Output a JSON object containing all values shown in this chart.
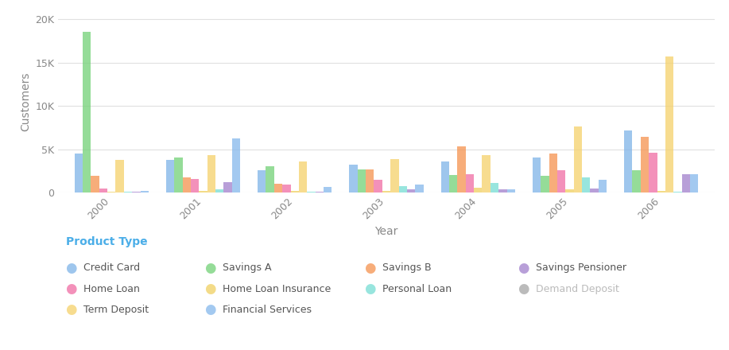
{
  "years": [
    2000,
    2001,
    2002,
    2003,
    2004,
    2005,
    2006
  ],
  "products": [
    "Credit Card",
    "Savings A",
    "Savings B",
    "Home Loan",
    "Home Loan Insurance",
    "Term Deposit",
    "Personal Loan",
    "Savings Pensioner",
    "Financial Services",
    "Demand Deposit"
  ],
  "colors": {
    "Credit Card": "#7EB3E8",
    "Home Loan": "#F06CA3",
    "Term Deposit": "#F5D16A",
    "Savings A": "#72D176",
    "Home Loan Insurance": "#F0D060",
    "Financial Services": "#85B8EC",
    "Savings B": "#F5924E",
    "Personal Loan": "#76DDD4",
    "Savings Pensioner": "#A07FCC",
    "Demand Deposit": "#CCCCCC"
  },
  "data": {
    "Credit Card": [
      4500,
      3800,
      2600,
      3200,
      3600,
      4000,
      7200
    ],
    "Home Loan": [
      500,
      1600,
      900,
      1500,
      2100,
      2600,
      4600
    ],
    "Term Deposit": [
      3800,
      4300,
      3600,
      3900,
      4300,
      7600,
      15700
    ],
    "Savings A": [
      18500,
      4000,
      3000,
      2700,
      2000,
      1900,
      2600
    ],
    "Home Loan Insurance": [
      100,
      200,
      200,
      200,
      550,
      350,
      200
    ],
    "Financial Services": [
      150,
      6200,
      600,
      900,
      400,
      1500,
      2100
    ],
    "Savings B": [
      1900,
      1700,
      1000,
      2700,
      5300,
      4500,
      6400
    ],
    "Personal Loan": [
      100,
      350,
      100,
      700,
      1100,
      1700,
      100
    ],
    "Savings Pensioner": [
      50,
      1200,
      100,
      400,
      350,
      450,
      2100
    ],
    "Demand Deposit": [
      0,
      0,
      0,
      0,
      0,
      0,
      0
    ]
  },
  "bar_order": [
    "Credit Card",
    "Savings A",
    "Savings B",
    "Home Loan",
    "Home Loan Insurance",
    "Term Deposit",
    "Personal Loan",
    "Savings Pensioner",
    "Financial Services"
  ],
  "ylim": [
    0,
    21000
  ],
  "yticks": [
    0,
    5000,
    10000,
    15000,
    20000
  ],
  "ytick_labels": [
    "0",
    "5K",
    "10K",
    "15K",
    "20K"
  ],
  "xlabel": "Year",
  "ylabel": "Customers",
  "legend_title": "Product Type",
  "legend_title_color": "#4BAEE8",
  "tick_color": "#888888",
  "label_color": "#555555",
  "background_color": "#FFFFFF",
  "grid_color": "#E0E0E0",
  "bar_width": 0.09,
  "legend_layout": [
    [
      "Credit Card",
      "Savings A",
      "Savings B",
      "Savings Pensioner"
    ],
    [
      "Home Loan",
      "Home Loan Insurance",
      "Personal Loan",
      "Demand Deposit"
    ],
    [
      "Term Deposit",
      "Financial Services",
      "",
      ""
    ]
  ]
}
